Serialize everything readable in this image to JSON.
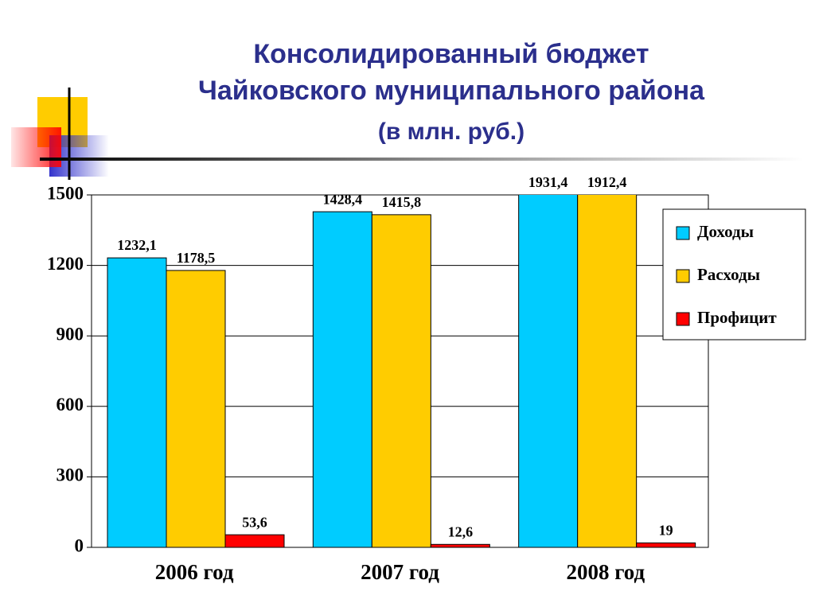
{
  "chart_data": {
    "type": "bar",
    "title": [
      "Консолидированный бюджет",
      "Чайковского муниципального района"
    ],
    "subtitle": "(в млн. руб.)",
    "categories": [
      "2006 год",
      "2007 год",
      "2008 год"
    ],
    "series": [
      {
        "name": "Доходы",
        "color": "#00ccff",
        "values": [
          1232.1,
          1428.4,
          1931.4
        ],
        "value_labels": [
          "1232,1",
          "1428,4",
          "1931,4"
        ]
      },
      {
        "name": "Расходы",
        "color": "#ffcc00",
        "values": [
          1178.5,
          1415.8,
          1912.4
        ],
        "value_labels": [
          "1178,5",
          "1415,8",
          "1912,4"
        ]
      },
      {
        "name": "Профицит",
        "color": "#ff0000",
        "values": [
          53.6,
          12.6,
          19
        ],
        "value_labels": [
          "53,6",
          "12,6",
          "19"
        ]
      }
    ],
    "ylim": [
      0,
      1500
    ],
    "yticks": [
      0,
      300,
      600,
      900,
      1200,
      1500
    ],
    "grid": true,
    "legend": "right"
  }
}
